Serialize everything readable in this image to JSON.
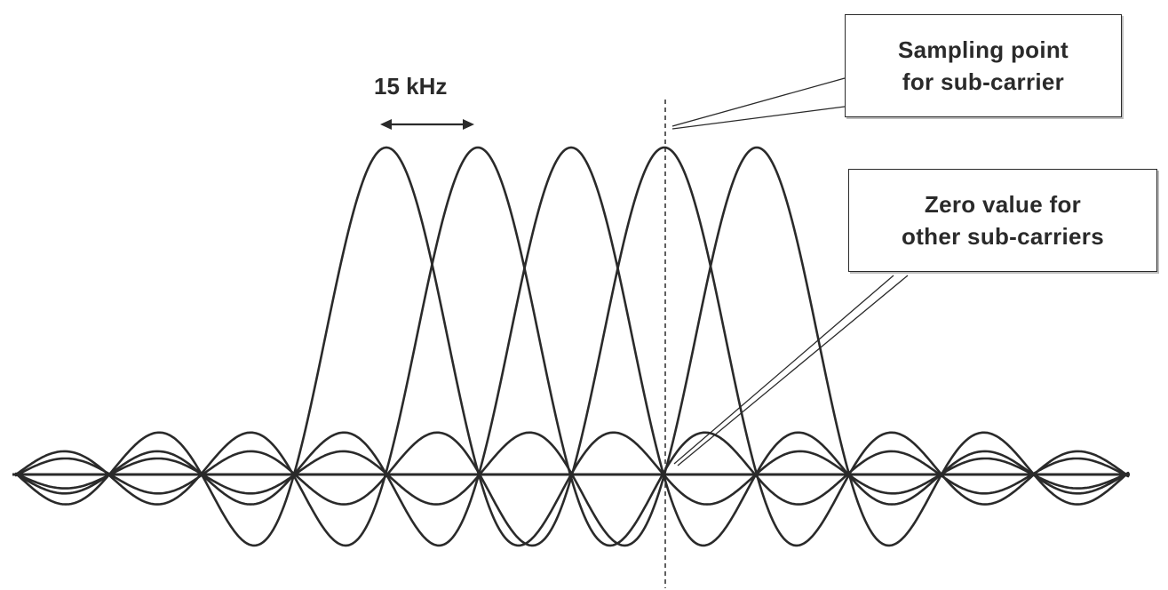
{
  "spacing_label": "15 kHz",
  "sampling_callout": {
    "line1": "Sampling point",
    "line2": "for sub-carrier"
  },
  "zero_callout": {
    "line1": "Zero value for",
    "line2": "other sub-carriers"
  },
  "colors": {
    "ink": "#2a2a2a",
    "background": "#ffffff"
  }
}
